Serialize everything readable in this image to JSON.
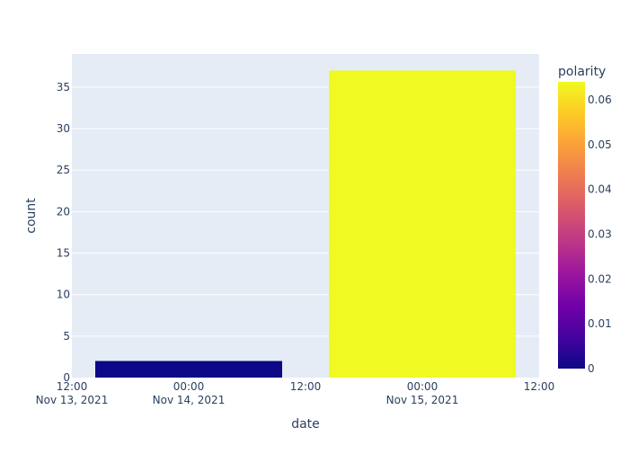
{
  "chart_data": {
    "type": "bar",
    "xlabel": "date",
    "ylabel": "count",
    "ylim": [
      0,
      39
    ],
    "xlim": [
      "2021-11-13 12:00",
      "2021-11-15 12:00"
    ],
    "bars": [
      {
        "x_start": "2021-11-13 14:24",
        "x_end": "2021-11-14 09:36",
        "count": 2,
        "polarity": 0
      },
      {
        "x_start": "2021-11-14 14:24",
        "x_end": "2021-11-15 09:36",
        "count": 37,
        "polarity": 0.064
      }
    ],
    "y_ticks": [
      "0",
      "5",
      "10",
      "15",
      "20",
      "25",
      "30",
      "35"
    ],
    "x_ticks": [
      {
        "time": "12:00",
        "date": "Nov 13, 2021"
      },
      {
        "time": "00:00",
        "date": "Nov 14, 2021"
      },
      {
        "time": "12:00",
        "date": ""
      },
      {
        "time": "00:00",
        "date": "Nov 15, 2021"
      },
      {
        "time": "12:00",
        "date": ""
      }
    ],
    "colorbar": {
      "title": "polarity",
      "range": [
        0,
        0.064
      ],
      "ticks": [
        "0",
        "0.01",
        "0.02",
        "0.03",
        "0.04",
        "0.05",
        "0.06"
      ],
      "colors": [
        "#0d0887",
        "#46039f",
        "#7201a8",
        "#9c179e",
        "#bd3786",
        "#d8576b",
        "#ed7953",
        "#fb9f3a",
        "#fdca26",
        "#f0f921"
      ]
    },
    "plot_background": "#e5ecf6",
    "grid": true
  }
}
